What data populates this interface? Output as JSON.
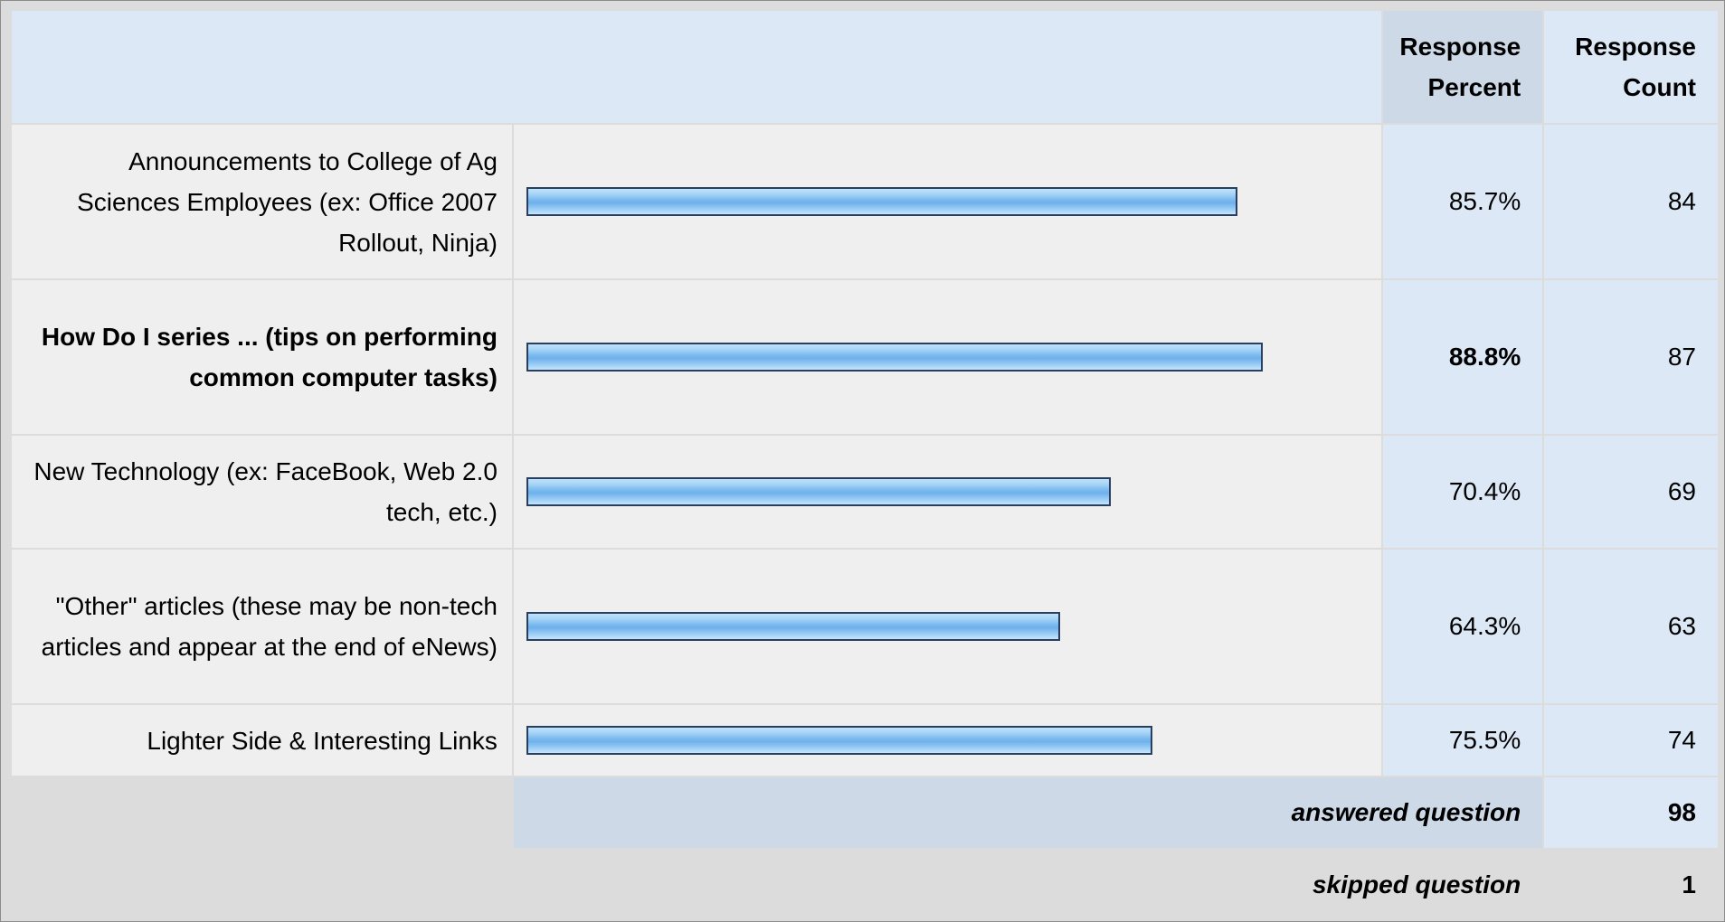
{
  "header": {
    "percent_label": "Response Percent",
    "count_label": "Response Count"
  },
  "chart_data": {
    "type": "bar",
    "orientation": "horizontal",
    "categories": [
      "Announcements to College of Ag Sciences Employees (ex: Office 2007 Rollout, Ninja)",
      "How Do I series ... (tips on performing common computer tasks)",
      "New Technology (ex: FaceBook, Web 2.0 tech, etc.)",
      "\"Other\" articles (these may be non-tech articles and appear at the end of eNews)",
      "Lighter Side & Interesting Links"
    ],
    "values": [
      85.7,
      88.8,
      70.4,
      64.3,
      75.5
    ],
    "percent_labels": [
      "85.7%",
      "88.8%",
      "70.4%",
      "64.3%",
      "75.5%"
    ],
    "counts": [
      "84",
      "87",
      "69",
      "63",
      "74"
    ],
    "highlighted_index": 1,
    "xlim": [
      0,
      100
    ],
    "bar_color": "#78b8ef"
  },
  "footer": {
    "answered_label": "answered question",
    "answered_value": "98",
    "skipped_label": "skipped question",
    "skipped_value": "1"
  }
}
